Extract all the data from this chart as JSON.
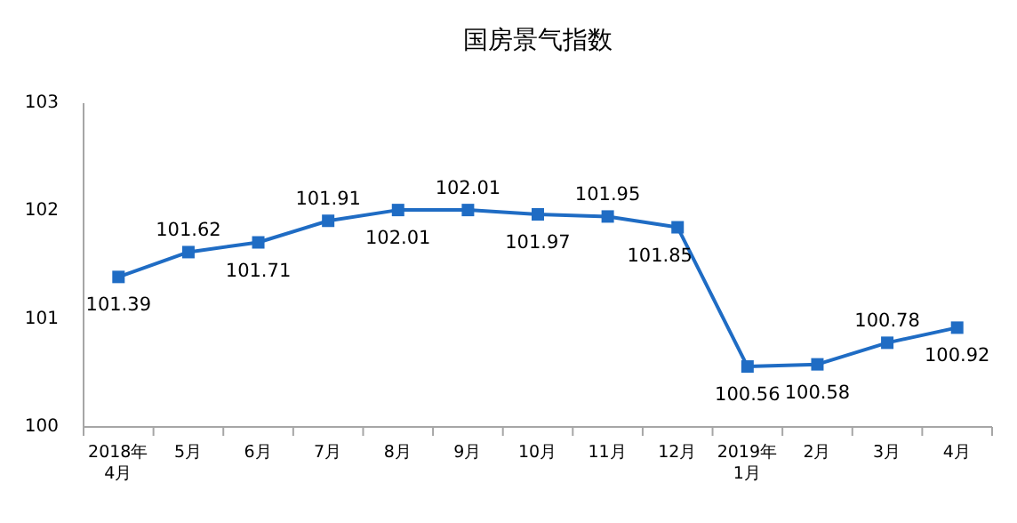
{
  "chart_data": {
    "type": "line",
    "title": "国房景气指数",
    "categories": [
      "2018年\n4月",
      "5月",
      "6月",
      "7月",
      "8月",
      "9月",
      "10月",
      "11月",
      "12月",
      "2019年\n1月",
      "2月",
      "3月",
      "4月"
    ],
    "series": [
      {
        "color": "#1f6cc4",
        "values": [
          101.39,
          101.62,
          101.71,
          101.91,
          102.01,
          102.01,
          101.97,
          101.95,
          101.85,
          100.56,
          100.58,
          100.78,
          100.92
        ]
      }
    ],
    "ylim": [
      100,
      103
    ],
    "yticks": [
      100,
      101,
      102,
      103
    ],
    "data_labels": true,
    "marker": "square",
    "line_style": "solid",
    "grid": false,
    "legend": false
  }
}
